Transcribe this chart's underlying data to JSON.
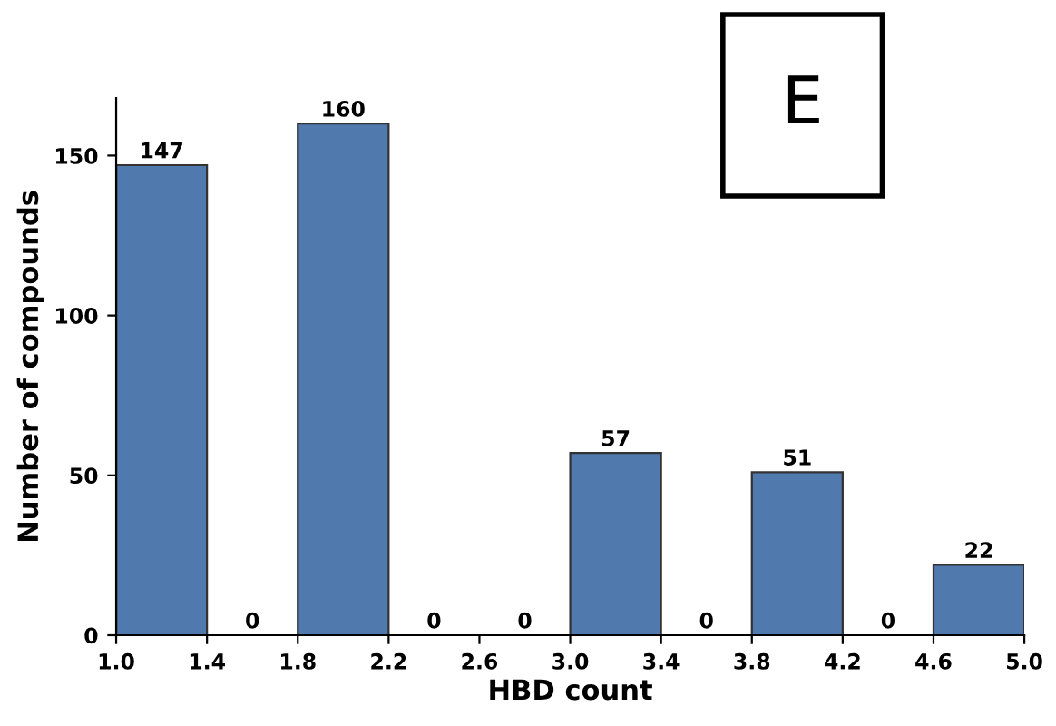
{
  "chart_data": {
    "type": "histogram",
    "xlabel": "HBD count",
    "ylabel": "Number of compounds",
    "bins": [
      1.0,
      1.4,
      1.8,
      2.2,
      2.6,
      3.0,
      3.4,
      3.8,
      4.2,
      4.6,
      5.0
    ],
    "values": [
      147,
      0,
      160,
      0,
      0,
      57,
      0,
      51,
      0,
      22
    ],
    "color": "#5079ad",
    "xlim": [
      1.0,
      5.0
    ],
    "xticks": [
      {
        "value": 1.0,
        "label": "1.0"
      },
      {
        "value": 1.4,
        "label": "1.4"
      },
      {
        "value": 1.8,
        "label": "1.8"
      },
      {
        "value": 2.2,
        "label": "2.2"
      },
      {
        "value": 2.6,
        "label": "2.6"
      },
      {
        "value": 3.0,
        "label": "3.0"
      },
      {
        "value": 3.4,
        "label": "3.4"
      },
      {
        "value": 3.8,
        "label": "3.8"
      },
      {
        "value": 4.2,
        "label": "4.2"
      },
      {
        "value": 4.6,
        "label": "4.6"
      },
      {
        "value": 5.0,
        "label": "5.0"
      }
    ],
    "ylim": [
      0,
      168
    ],
    "yticks": [
      0,
      50,
      100,
      150
    ],
    "data_labels": true,
    "grid": false,
    "legend": false,
    "annotations": [
      "E"
    ]
  }
}
